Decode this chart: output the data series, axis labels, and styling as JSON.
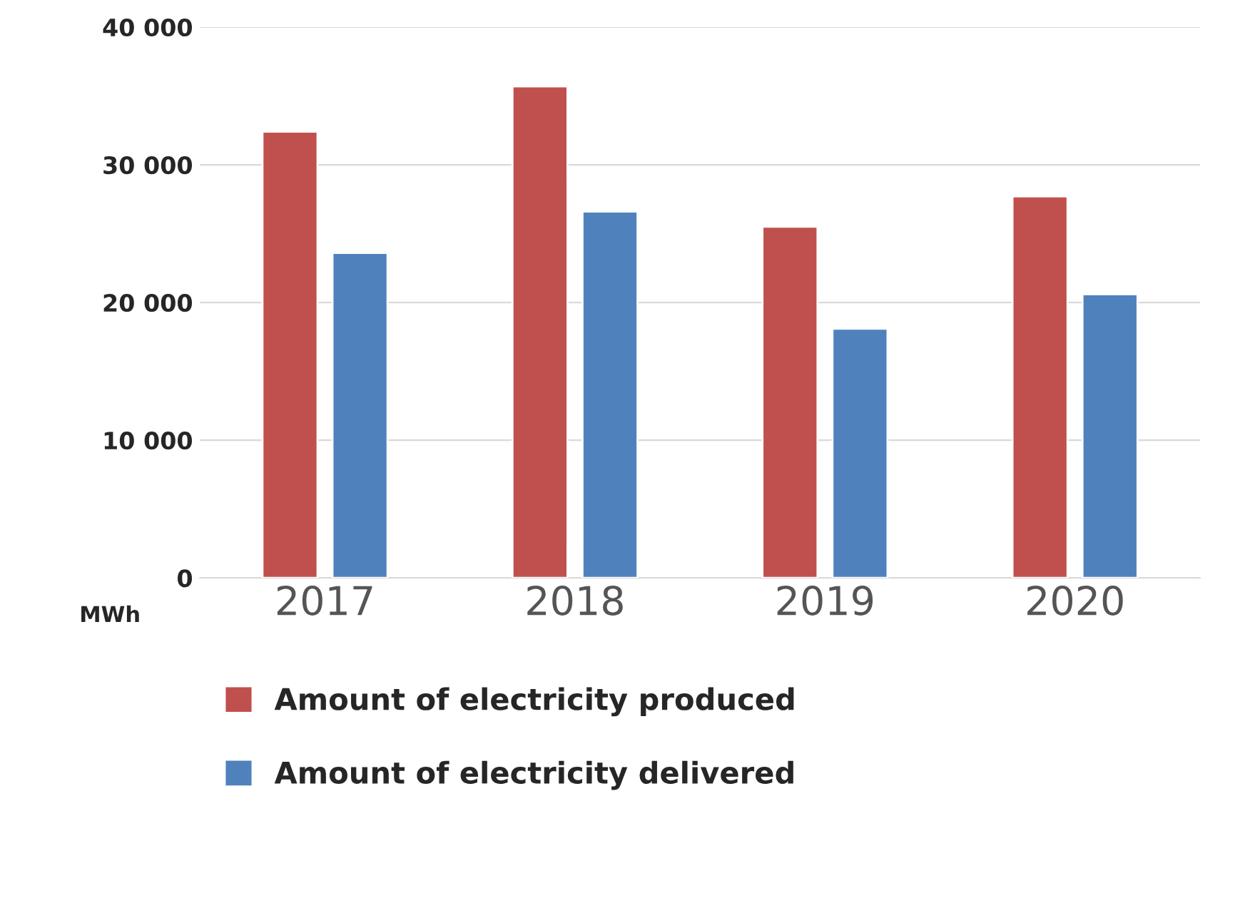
{
  "chart_data": {
    "type": "bar",
    "ylabel": "MWh",
    "categories": [
      "2017",
      "2018",
      "2019",
      "2020"
    ],
    "series": [
      {
        "name": "Amount of electricity produced",
        "color": "#c0504d",
        "values": [
          32400,
          35700,
          25500,
          27700
        ]
      },
      {
        "name": "Amount of electricity delivered",
        "color": "#4f81bd",
        "values": [
          23600,
          26600,
          18100,
          20600
        ]
      }
    ],
    "ylim": [
      0,
      40000
    ],
    "yticks": [
      {
        "value": 0,
        "label": "0"
      },
      {
        "value": 10000,
        "label": "10 000"
      },
      {
        "value": 20000,
        "label": "20 000"
      },
      {
        "value": 30000,
        "label": "30 000"
      },
      {
        "value": 40000,
        "label": "40 000"
      }
    ],
    "grid": "y",
    "legend": "bottom"
  }
}
